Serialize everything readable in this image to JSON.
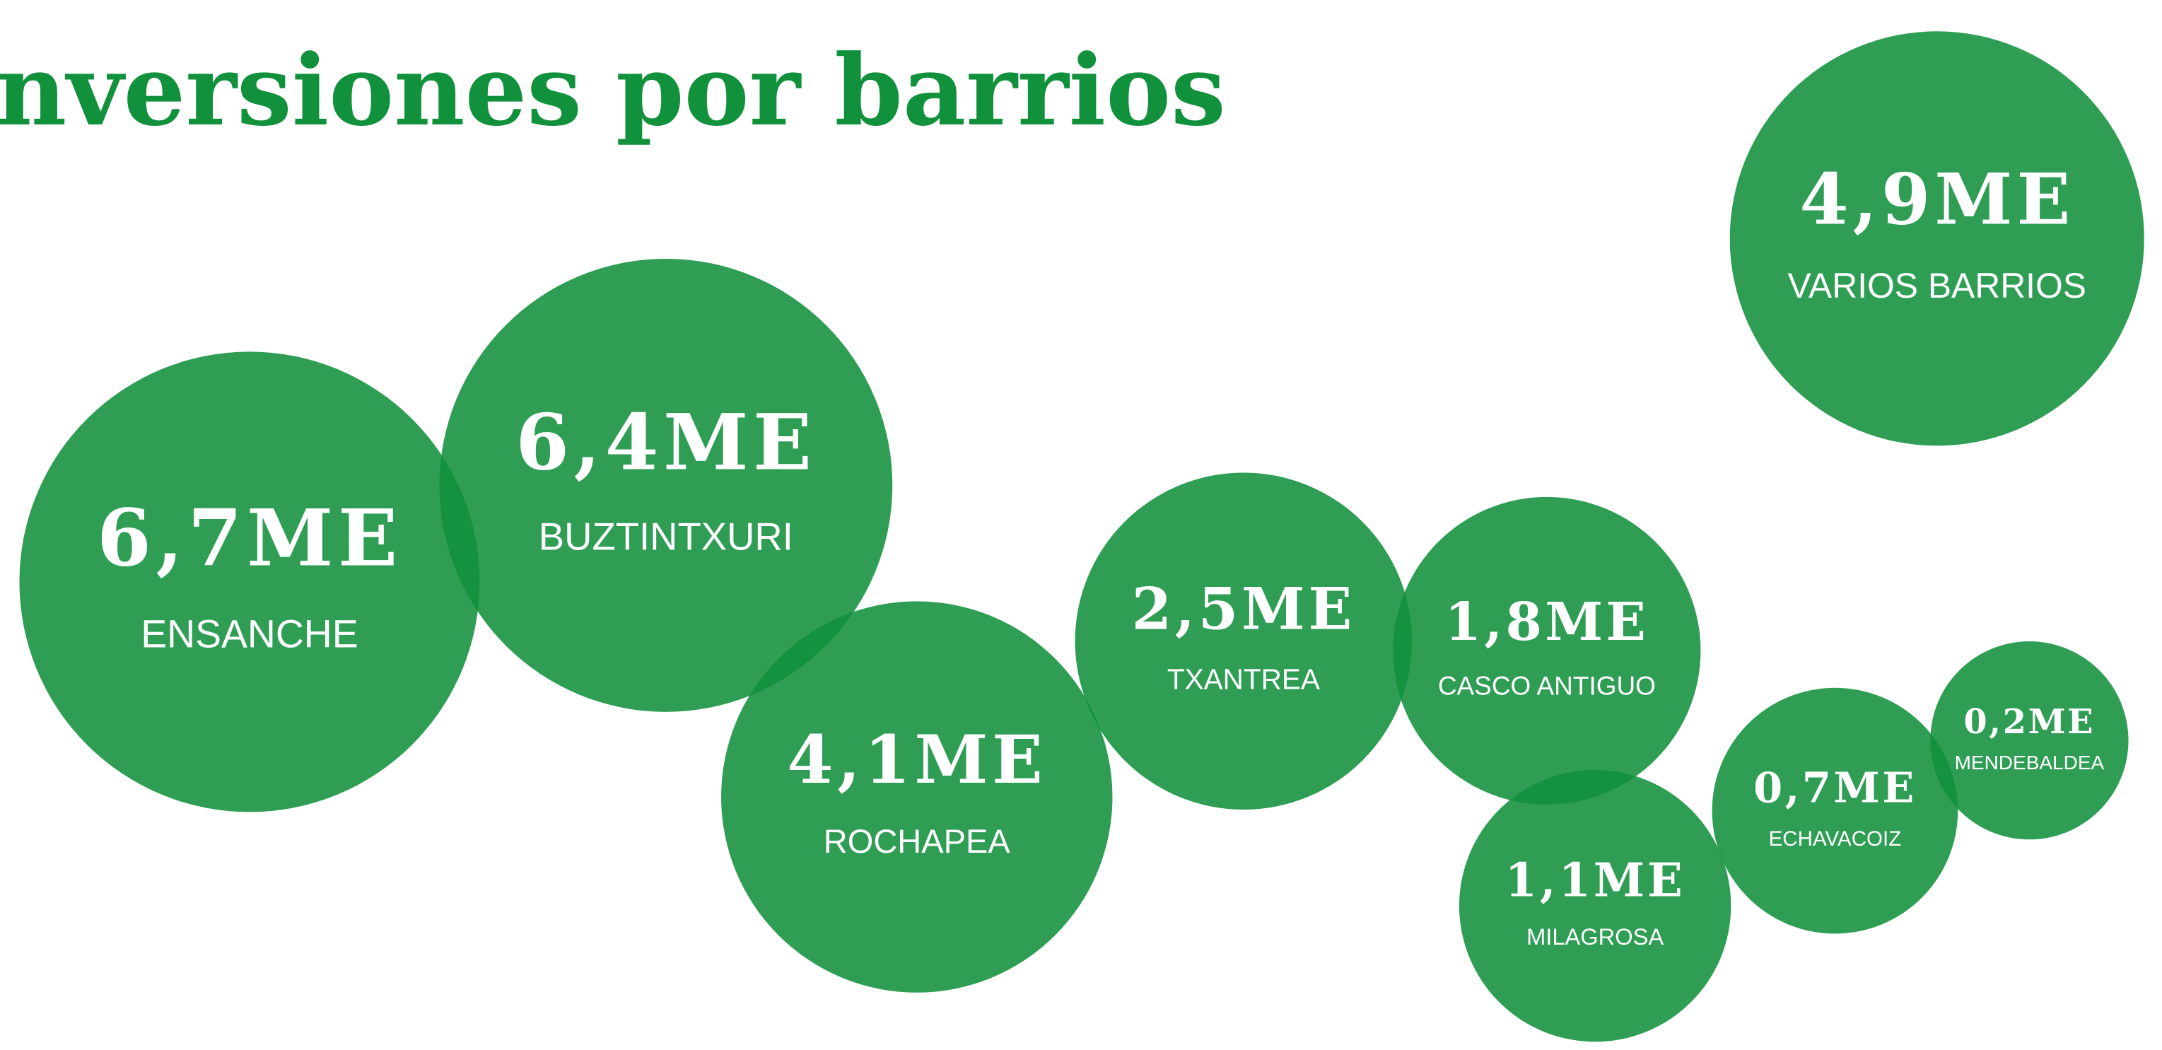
{
  "chart_data": {
    "type": "bubble",
    "title": "nversiones por barrios",
    "color": "#12913c",
    "categories": [
      "ENSANCHE",
      "BUZTINTXURI",
      "ROCHAPEA",
      "TXANTREA",
      "CASCO ANTIGUO",
      "MILAGROSA",
      "ECHAVACOIZ",
      "MENDEBALDEA",
      "VARIOS BARRIOS"
    ],
    "values": [
      6.7,
      6.4,
      4.1,
      2.5,
      1.8,
      1.1,
      0.7,
      0.2,
      4.9
    ],
    "value_labels": [
      "6,7ME",
      "6,4ME",
      "4,1ME",
      "2,5ME",
      "1,8ME",
      "1,1ME",
      "0,7ME",
      "0,2ME",
      "4,9ME"
    ]
  }
}
